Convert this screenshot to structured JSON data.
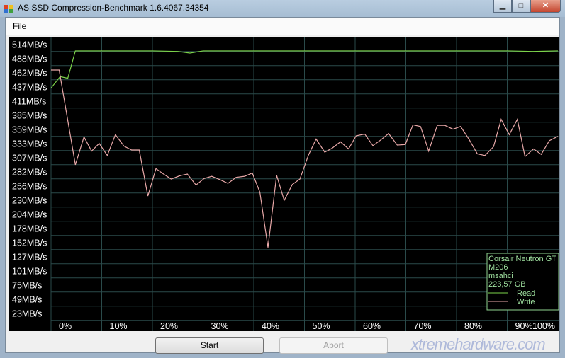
{
  "window": {
    "title": "AS SSD Compression-Benchmark 1.6.4067.34354",
    "minimize": "▁",
    "maximize": "□",
    "close": "✕"
  },
  "menu": {
    "file": "File"
  },
  "buttons": {
    "start": "Start",
    "abort": "Abort"
  },
  "watermark": "xtremehardware.com",
  "chart_data": {
    "type": "line",
    "y_tick_labels": [
      "514MB/s",
      "488MB/s",
      "462MB/s",
      "437MB/s",
      "411MB/s",
      "385MB/s",
      "359MB/s",
      "333MB/s",
      "307MB/s",
      "282MB/s",
      "256MB/s",
      "230MB/s",
      "204MB/s",
      "178MB/s",
      "152MB/s",
      "127MB/s",
      "101MB/s",
      "75MB/s",
      "49MB/s",
      "23MB/s"
    ],
    "x_tick_labels": [
      "0%",
      "10%",
      "20%",
      "30%",
      "40%",
      "50%",
      "60%",
      "70%",
      "80%",
      "90%",
      "100%"
    ],
    "xlim": [
      0,
      100
    ],
    "ylim": [
      23,
      514
    ],
    "grid": true,
    "legend": {
      "placement": "bottom-right",
      "drive": "Corsair Neutron GT",
      "firmware": "M206",
      "driver": "msahci",
      "size": "223,57 GB"
    },
    "series": [
      {
        "name": "Read",
        "color": "#7cd34a",
        "x": [
          0,
          1.8,
          3.3,
          4.8,
          10,
          20,
          25,
          27.4,
          30,
          40,
          50,
          60,
          70,
          80,
          90,
          95,
          100
        ],
        "y": [
          447,
          468,
          465,
          515,
          515,
          515,
          514,
          511,
          515,
          515,
          515,
          515,
          515,
          515,
          515,
          514,
          515
        ]
      },
      {
        "name": "Write",
        "color": "#e8a8a8",
        "x": [
          0,
          1.6,
          4.8,
          6.5,
          8.0,
          9.5,
          11.1,
          12.7,
          14.4,
          15.9,
          17.4,
          19.1,
          20.7,
          22.2,
          23.7,
          25.4,
          26.9,
          28.6,
          30.2,
          31.7,
          33.3,
          34.9,
          36.5,
          38.2,
          39.7,
          41.2,
          42.8,
          44.5,
          46.0,
          47.6,
          49.1,
          50.8,
          52.3,
          54.0,
          55.4,
          57.1,
          58.7,
          60.2,
          61.9,
          63.5,
          65.0,
          66.6,
          68.3,
          69.9,
          71.4,
          72.9,
          74.5,
          76.2,
          77.7,
          79.3,
          80.8,
          82.5,
          84.1,
          85.6,
          87.3,
          88.8,
          90.4,
          92.0,
          93.5,
          95.2,
          96.7,
          98.3,
          100
        ],
        "y": [
          480,
          480,
          307,
          358,
          332,
          346,
          324,
          362,
          341,
          334,
          334,
          250,
          300,
          290,
          281,
          287,
          290,
          270,
          282,
          286,
          280,
          273,
          284,
          286,
          292,
          257,
          156,
          288,
          242,
          271,
          281,
          325,
          354,
          330,
          337,
          349,
          336,
          360,
          363,
          342,
          352,
          364,
          343,
          344,
          380,
          377,
          332,
          379,
          379,
          372,
          377,
          353,
          327,
          324,
          340,
          390,
          362,
          390,
          322,
          336,
          326,
          351,
          359
        ]
      }
    ]
  }
}
